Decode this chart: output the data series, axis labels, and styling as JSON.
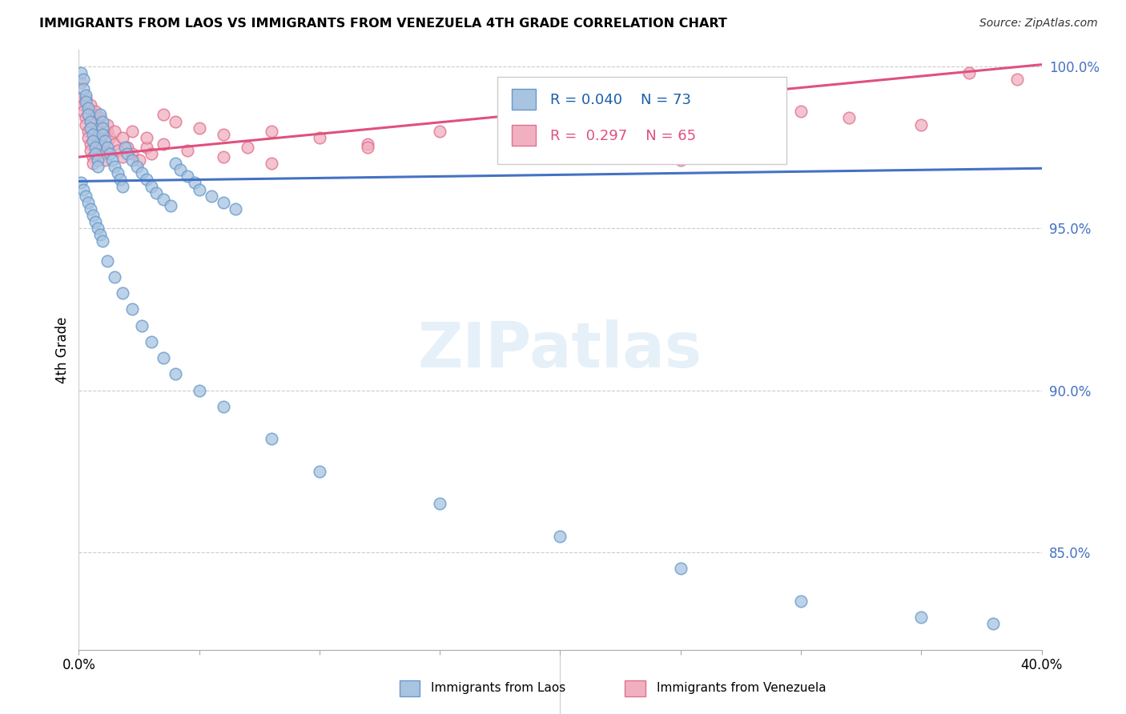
{
  "title": "IMMIGRANTS FROM LAOS VS IMMIGRANTS FROM VENEZUELA 4TH GRADE CORRELATION CHART",
  "source": "Source: ZipAtlas.com",
  "ylabel": "4th Grade",
  "xlim": [
    0.0,
    0.4
  ],
  "ylim": [
    0.82,
    1.005
  ],
  "laos_color": "#a8c4e0",
  "laos_edge": "#6699cc",
  "venezuela_color": "#f0b0c0",
  "venezuela_edge": "#e07090",
  "line_laos_color": "#4472c4",
  "line_venezuela_color": "#e05080",
  "legend_R_laos": "R = 0.040",
  "legend_N_laos": "N = 73",
  "legend_R_venezuela": "R =  0.297",
  "legend_N_venezuela": "N = 65",
  "laos_line_y0": 0.9645,
  "laos_line_y1": 0.9685,
  "ven_line_y0": 0.972,
  "ven_line_y1": 1.0005,
  "laos_x": [
    0.001,
    0.002,
    0.002,
    0.003,
    0.003,
    0.004,
    0.004,
    0.005,
    0.005,
    0.006,
    0.006,
    0.007,
    0.007,
    0.008,
    0.008,
    0.009,
    0.01,
    0.01,
    0.01,
    0.011,
    0.012,
    0.013,
    0.014,
    0.015,
    0.016,
    0.017,
    0.018,
    0.019,
    0.02,
    0.022,
    0.024,
    0.026,
    0.028,
    0.03,
    0.032,
    0.035,
    0.038,
    0.04,
    0.042,
    0.045,
    0.048,
    0.05,
    0.055,
    0.06,
    0.065,
    0.001,
    0.002,
    0.003,
    0.004,
    0.005,
    0.006,
    0.007,
    0.008,
    0.009,
    0.01,
    0.012,
    0.015,
    0.018,
    0.022,
    0.026,
    0.03,
    0.035,
    0.04,
    0.05,
    0.06,
    0.08,
    0.1,
    0.15,
    0.2,
    0.25,
    0.3,
    0.35,
    0.38
  ],
  "laos_y": [
    0.998,
    0.996,
    0.993,
    0.991,
    0.989,
    0.987,
    0.985,
    0.983,
    0.981,
    0.979,
    0.977,
    0.975,
    0.973,
    0.971,
    0.969,
    0.985,
    0.983,
    0.981,
    0.979,
    0.977,
    0.975,
    0.973,
    0.971,
    0.969,
    0.967,
    0.965,
    0.963,
    0.975,
    0.973,
    0.971,
    0.969,
    0.967,
    0.965,
    0.963,
    0.961,
    0.959,
    0.957,
    0.97,
    0.968,
    0.966,
    0.964,
    0.962,
    0.96,
    0.958,
    0.956,
    0.964,
    0.962,
    0.96,
    0.958,
    0.956,
    0.954,
    0.952,
    0.95,
    0.948,
    0.946,
    0.94,
    0.935,
    0.93,
    0.925,
    0.92,
    0.915,
    0.91,
    0.905,
    0.9,
    0.895,
    0.885,
    0.875,
    0.865,
    0.855,
    0.845,
    0.835,
    0.83,
    0.828
  ],
  "venezuela_x": [
    0.001,
    0.001,
    0.002,
    0.002,
    0.003,
    0.003,
    0.004,
    0.004,
    0.005,
    0.005,
    0.006,
    0.006,
    0.007,
    0.007,
    0.008,
    0.008,
    0.009,
    0.01,
    0.01,
    0.011,
    0.012,
    0.013,
    0.015,
    0.016,
    0.018,
    0.02,
    0.022,
    0.025,
    0.028,
    0.03,
    0.035,
    0.04,
    0.05,
    0.06,
    0.07,
    0.08,
    0.1,
    0.12,
    0.15,
    0.18,
    0.2,
    0.22,
    0.25,
    0.28,
    0.3,
    0.32,
    0.35,
    0.37,
    0.39,
    0.003,
    0.005,
    0.007,
    0.009,
    0.012,
    0.015,
    0.018,
    0.022,
    0.028,
    0.035,
    0.045,
    0.06,
    0.08,
    0.12,
    0.18,
    0.25
  ],
  "venezuela_y": [
    0.995,
    0.99,
    0.988,
    0.986,
    0.984,
    0.982,
    0.98,
    0.978,
    0.976,
    0.974,
    0.972,
    0.97,
    0.985,
    0.983,
    0.981,
    0.979,
    0.977,
    0.975,
    0.973,
    0.971,
    0.98,
    0.978,
    0.976,
    0.974,
    0.972,
    0.975,
    0.973,
    0.971,
    0.975,
    0.973,
    0.985,
    0.983,
    0.981,
    0.979,
    0.975,
    0.98,
    0.978,
    0.976,
    0.98,
    0.978,
    0.982,
    0.98,
    0.99,
    0.988,
    0.986,
    0.984,
    0.982,
    0.998,
    0.996,
    0.99,
    0.988,
    0.986,
    0.984,
    0.982,
    0.98,
    0.978,
    0.98,
    0.978,
    0.976,
    0.974,
    0.972,
    0.97,
    0.975,
    0.973,
    0.971
  ]
}
